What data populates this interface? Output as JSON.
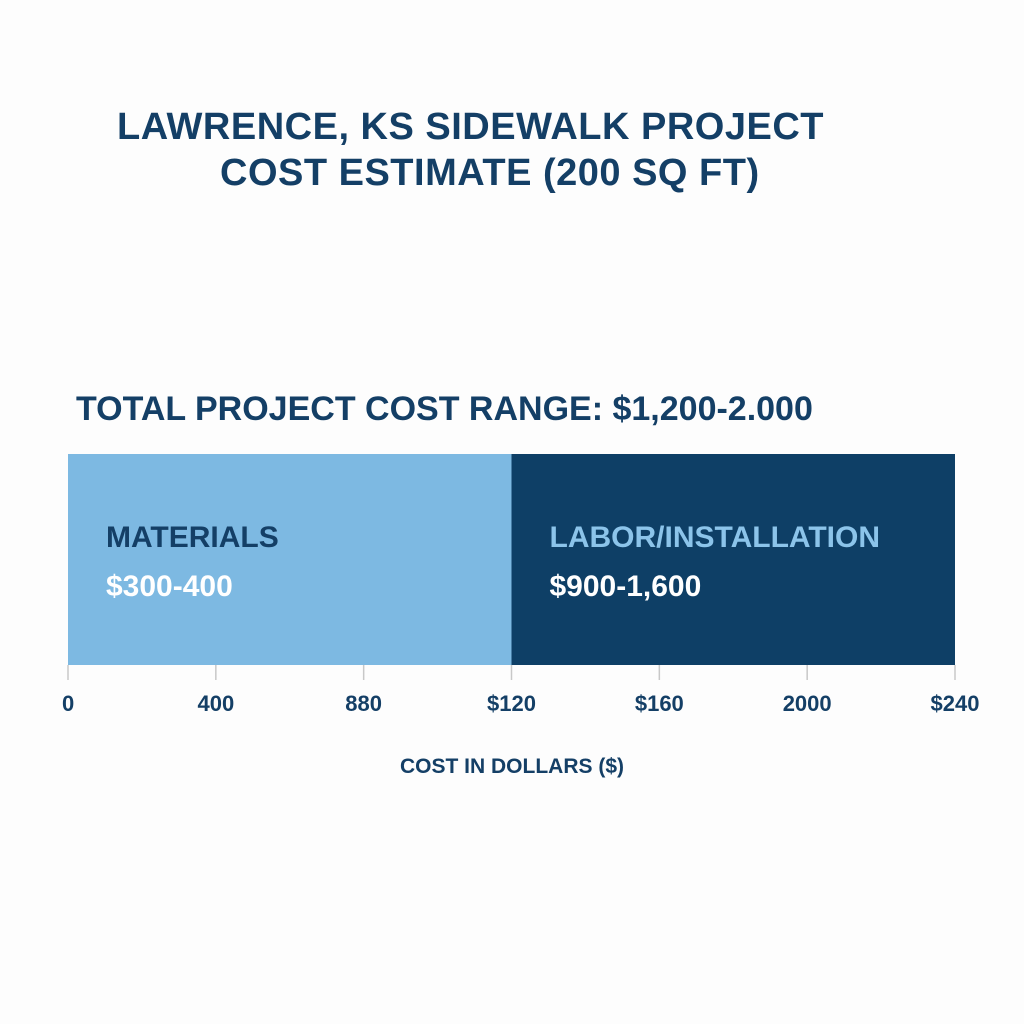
{
  "chart_data": {
    "type": "bar",
    "orientation": "horizontal-stacked",
    "title": [
      "LAWRENCE, KS SIDEWALK PROJECT",
      "COST ESTIMATE (200 SQ FT)"
    ],
    "subtitle": "TOTAL PROJECT COST RANGE: $1,200-2.000",
    "xlabel": "COST IN DOLLARS ($)",
    "ylabel": "",
    "x_tick_labels": [
      "0",
      "400",
      "880",
      "$120",
      "$160",
      "2000",
      "$240"
    ],
    "segments": [
      {
        "name": "MATERIALS",
        "value_label": "$300-400",
        "start_tick": 0,
        "end_tick": 3,
        "color": "#7db9e2",
        "label_color": "#143f66"
      },
      {
        "name": "LABOR/INSTALLATION",
        "value_label": "$900-1,600",
        "start_tick": 3,
        "end_tick": 6,
        "color": "#0e3f66",
        "label_color": "#8cc4ea"
      }
    ],
    "grid": false,
    "legend": "none"
  }
}
